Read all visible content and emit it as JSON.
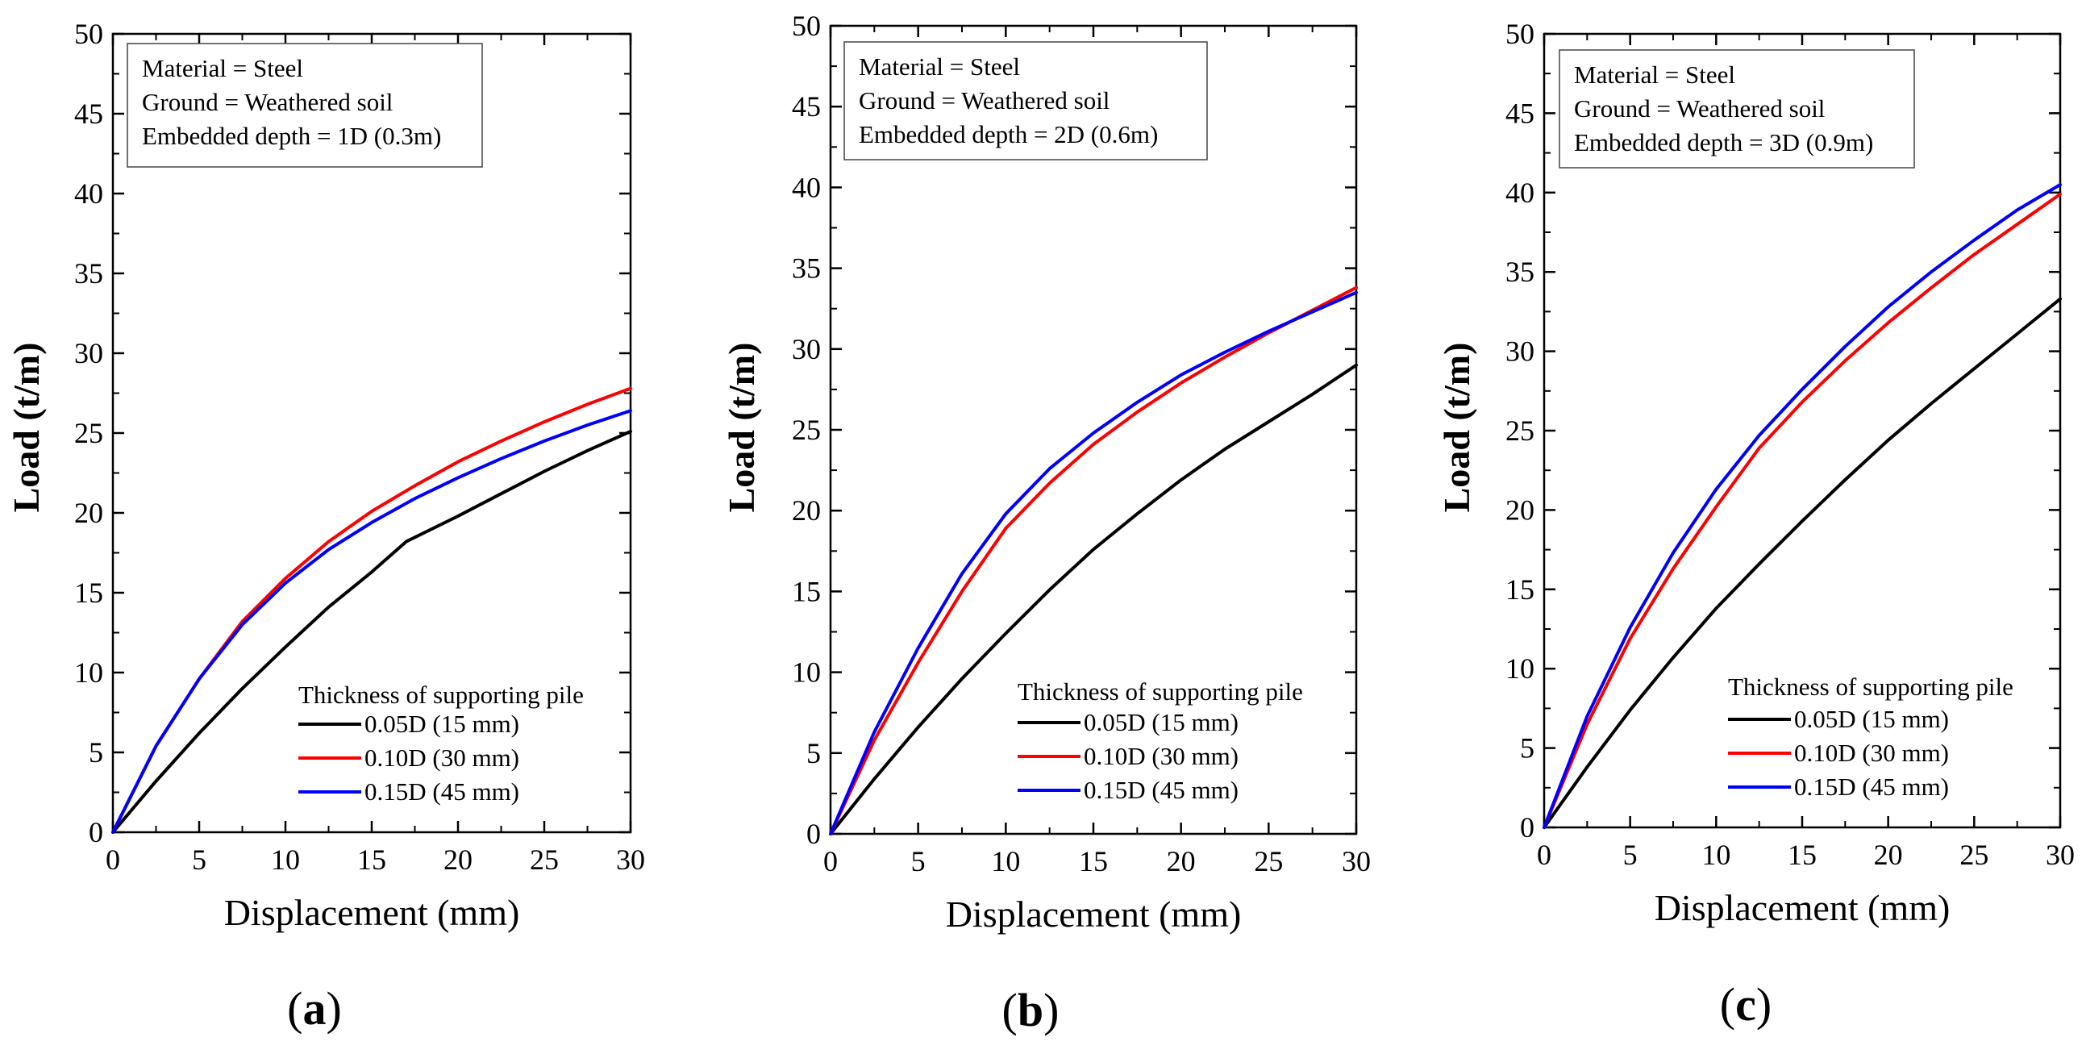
{
  "chart_data": [
    {
      "type": "line",
      "panel_label": "(a)",
      "panel_letter": "a",
      "xlabel": "Displacement (mm)",
      "ylabel": "Load (t/m)",
      "xlim": [
        0,
        30
      ],
      "ylim": [
        0,
        50
      ],
      "xticks": [
        0,
        5,
        10,
        15,
        20,
        25,
        30
      ],
      "yticks": [
        0,
        5,
        10,
        15,
        20,
        25,
        30,
        35,
        40,
        45,
        50
      ],
      "info_box": [
        "Material = Steel",
        "Ground = Weathered soil",
        "Embedded depth = 1D (0.3m)"
      ],
      "legend_title": "Thickness of supporting pile",
      "series": [
        {
          "name": "0.05D (15 mm)",
          "color": "#000000",
          "x": [
            0,
            2.5,
            5,
            7.5,
            10,
            12.5,
            15,
            17,
            20,
            22.5,
            25,
            27.5,
            30
          ],
          "y": [
            0,
            3.2,
            6.2,
            9.0,
            11.6,
            14.1,
            16.3,
            18.2,
            19.8,
            21.2,
            22.6,
            23.9,
            25.1
          ]
        },
        {
          "name": "0.10D (30 mm)",
          "color": "#ff0000",
          "x": [
            0,
            2.5,
            5,
            7.5,
            10,
            12.5,
            15,
            17.5,
            20,
            22.5,
            25,
            27.5,
            30
          ],
          "y": [
            0,
            5.4,
            9.6,
            13.2,
            15.9,
            18.2,
            20.1,
            21.7,
            23.2,
            24.5,
            25.7,
            26.8,
            27.8
          ]
        },
        {
          "name": "0.15D (45 mm)",
          "color": "#0000ff",
          "x": [
            0,
            2.5,
            5,
            7.5,
            10,
            12.5,
            15,
            17.5,
            20,
            22.5,
            25,
            27.5,
            30
          ],
          "y": [
            0,
            5.4,
            9.6,
            13.0,
            15.6,
            17.7,
            19.4,
            20.9,
            22.2,
            23.4,
            24.5,
            25.5,
            26.4
          ]
        }
      ]
    },
    {
      "type": "line",
      "panel_label": "(b)",
      "panel_letter": "b",
      "xlabel": "Displacement (mm)",
      "ylabel": "Load (t/m)",
      "xlim": [
        0,
        30
      ],
      "ylim": [
        0,
        50
      ],
      "xticks": [
        0,
        5,
        10,
        15,
        20,
        25,
        30
      ],
      "yticks": [
        0,
        5,
        10,
        15,
        20,
        25,
        30,
        35,
        40,
        45,
        50
      ],
      "info_box": [
        "Material = Steel",
        "Ground = Weathered soil",
        "Embedded depth = 2D (0.6m)"
      ],
      "legend_title": "Thickness of supporting pile",
      "series": [
        {
          "name": "0.05D (15 mm)",
          "color": "#000000",
          "x": [
            0,
            2.5,
            5,
            7.5,
            10,
            12.5,
            15,
            17.5,
            20,
            22.5,
            25,
            27.5,
            30
          ],
          "y": [
            0,
            3.4,
            6.6,
            9.6,
            12.4,
            15.1,
            17.6,
            19.8,
            21.9,
            23.8,
            25.5,
            27.2,
            29.0
          ]
        },
        {
          "name": "0.10D (30 mm)",
          "color": "#ff0000",
          "x": [
            0,
            2.5,
            5,
            7.5,
            10,
            12.5,
            15,
            17.5,
            20,
            22.5,
            25,
            27.5,
            30
          ],
          "y": [
            0,
            5.8,
            10.6,
            15.0,
            18.9,
            21.7,
            24.1,
            26.1,
            27.9,
            29.5,
            31.0,
            32.4,
            33.8
          ]
        },
        {
          "name": "0.15D (45 mm)",
          "color": "#0000ff",
          "x": [
            0,
            2.5,
            5,
            7.5,
            10,
            12.5,
            15,
            17.5,
            20,
            22.5,
            25,
            27.5,
            30
          ],
          "y": [
            0,
            6.3,
            11.5,
            16.1,
            19.8,
            22.6,
            24.8,
            26.7,
            28.4,
            29.8,
            31.1,
            32.3,
            33.5
          ]
        }
      ]
    },
    {
      "type": "line",
      "panel_label": "(c)",
      "panel_letter": "c",
      "xlabel": "Displacement (mm)",
      "ylabel": "Load (t/m)",
      "xlim": [
        0,
        30
      ],
      "ylim": [
        0,
        50
      ],
      "xticks": [
        0,
        5,
        10,
        15,
        20,
        25,
        30
      ],
      "yticks": [
        0,
        5,
        10,
        15,
        20,
        25,
        30,
        35,
        40,
        45,
        50
      ],
      "info_box": [
        "Material = Steel",
        "Ground = Weathered soil",
        "Embedded depth = 3D (0.9m)"
      ],
      "legend_title": "Thickness of supporting pile",
      "series": [
        {
          "name": "0.05D (15 mm)",
          "color": "#000000",
          "x": [
            0,
            2.5,
            5,
            7.5,
            10,
            12.5,
            15,
            17.5,
            20,
            22.5,
            25,
            27.5,
            30
          ],
          "y": [
            0,
            3.8,
            7.4,
            10.7,
            13.8,
            16.6,
            19.3,
            21.9,
            24.4,
            26.7,
            28.9,
            31.1,
            33.3
          ]
        },
        {
          "name": "0.10D (30 mm)",
          "color": "#ff0000",
          "x": [
            0,
            2.5,
            5,
            7.5,
            10,
            12.5,
            15,
            17.5,
            20,
            22.5,
            25,
            27.5,
            30
          ],
          "y": [
            0,
            6.5,
            11.9,
            16.3,
            20.2,
            23.9,
            26.8,
            29.4,
            31.8,
            34.0,
            36.1,
            38.0,
            39.9
          ]
        },
        {
          "name": "0.15D (45 mm)",
          "color": "#0000ff",
          "x": [
            0,
            2.5,
            5,
            7.5,
            10,
            12.5,
            15,
            17.5,
            20,
            22.5,
            25,
            27.5,
            30
          ],
          "y": [
            0,
            7.0,
            12.6,
            17.3,
            21.3,
            24.7,
            27.6,
            30.3,
            32.8,
            35.0,
            37.0,
            38.9,
            40.5
          ]
        }
      ]
    }
  ]
}
